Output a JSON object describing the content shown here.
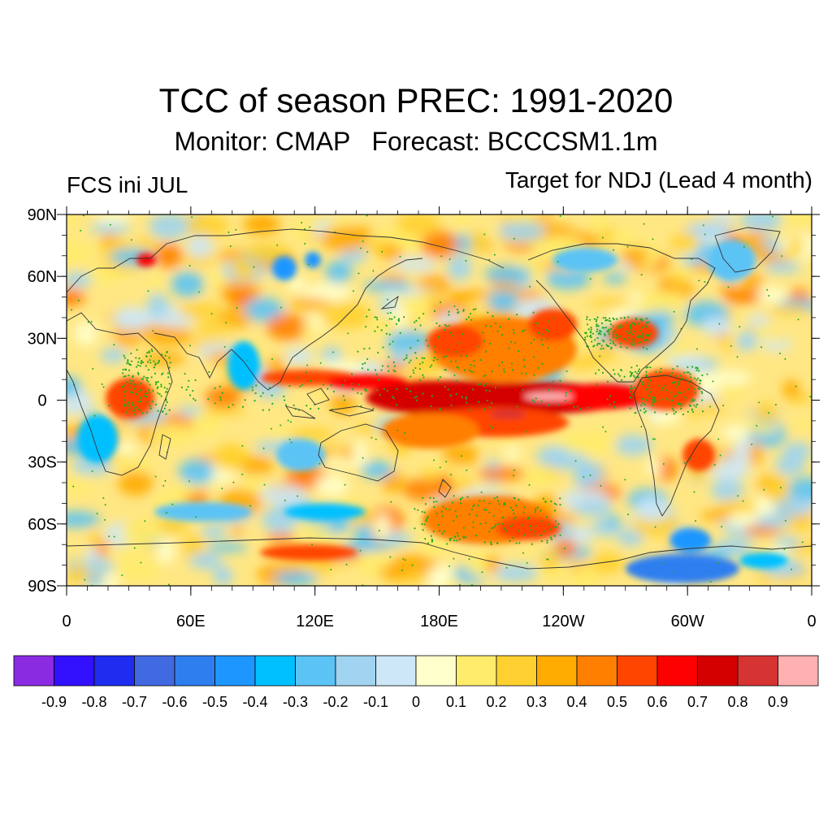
{
  "title": "TCC of season PREC: 1991-2020",
  "subtitle": "Monitor: CMAP   Forecast: BCCCSM1.1m",
  "left_label": "FCS ini JUL",
  "right_label": "Target for NDJ (Lead 4 month)",
  "map": {
    "projection": "cylindrical equidistant",
    "lon_range": [
      0,
      360
    ],
    "lat_range": [
      -90,
      90
    ],
    "lat_ticks": [
      "90N",
      "60N",
      "30N",
      "0",
      "30S",
      "60S",
      "90S"
    ],
    "lon_ticks": [
      "0",
      "60E",
      "120E",
      "180E",
      "120W",
      "60W",
      "0"
    ],
    "stippling_color": "#22aa22"
  },
  "colorbar": {
    "colors": [
      "#8a2be2",
      "#3311ff",
      "#1e2df0",
      "#4169e1",
      "#2e7ef0",
      "#1e96ff",
      "#00bfff",
      "#5cc3f5",
      "#a0d4f0",
      "#cde7f7",
      "#ffffcc",
      "#ffec6b",
      "#ffd030",
      "#ffab00",
      "#ff7f00",
      "#ff4500",
      "#ff0000",
      "#d40000",
      "#d63333",
      "#ffb0b0"
    ],
    "labels": [
      "-0.9",
      "-0.8",
      "-0.7",
      "-0.6",
      "-0.5",
      "-0.4",
      "-0.3",
      "-0.2",
      "-0.1",
      "0",
      "0.1",
      "0.2",
      "0.3",
      "0.4",
      "0.5",
      "0.6",
      "0.7",
      "0.8",
      "0.9"
    ]
  }
}
